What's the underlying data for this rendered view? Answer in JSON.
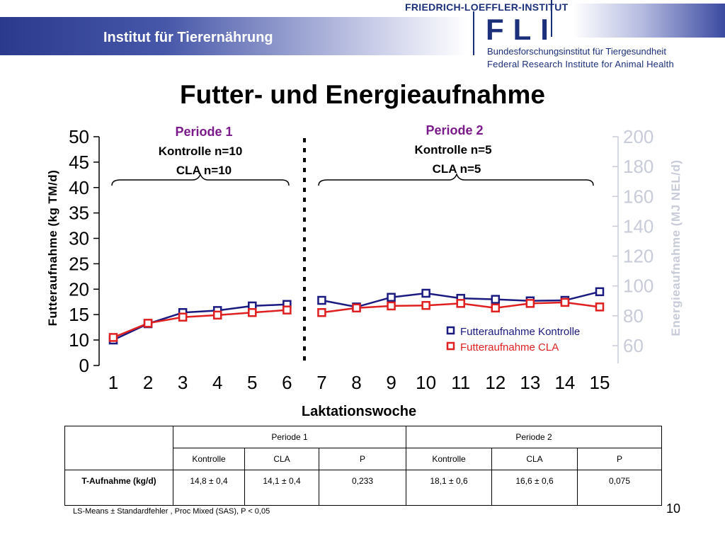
{
  "header": {
    "institute": "Institut für Tierernährung",
    "fli_name": "FRIEDRICH-LOEFFLER-INSTITUT",
    "fli_logo": "FLI",
    "fli_de": "Bundesforschungsinstitut für Tiergesundheit",
    "fli_en": "Federal Research Institute for Animal Health",
    "brand_color": "#1b2f7a"
  },
  "title": "Futter- und Energieaufnahme",
  "chart_data": {
    "type": "line",
    "xlabel": "Laktationswoche",
    "ylabel": "Futteraufnahme (kg TM/d)",
    "y2label": "Energieaufnahme (MJ NEL/d)",
    "x": [
      1,
      2,
      3,
      4,
      5,
      6,
      7,
      8,
      9,
      10,
      11,
      12,
      13,
      14,
      15
    ],
    "y_ticks": [
      0,
      10,
      15,
      20,
      25,
      30,
      35,
      40,
      45,
      50
    ],
    "y2_ticks": [
      60,
      80,
      100,
      120,
      140,
      160,
      180,
      200
    ],
    "ylim": [
      0,
      50
    ],
    "y2lim": [
      50,
      200
    ],
    "series": [
      {
        "name": "Futteraufnahme Kontrolle",
        "color": "#1a1a80",
        "values": [
          10.0,
          13.2,
          15.4,
          15.8,
          16.7,
          17.0,
          17.8,
          16.5,
          18.4,
          19.2,
          18.2,
          18.0,
          17.7,
          17.8,
          19.5
        ]
      },
      {
        "name": "Futteraufnahme CLA",
        "color": "#e02020",
        "values": [
          10.5,
          13.3,
          14.5,
          14.9,
          15.4,
          15.9,
          15.4,
          16.3,
          16.7,
          16.8,
          17.2,
          16.3,
          17.2,
          17.4,
          16.5
        ]
      }
    ],
    "periods": [
      {
        "label": "Periode 1",
        "line1": "Kontrolle n=10",
        "line2": "CLA n=10",
        "color": "#7b1a8a"
      },
      {
        "label": "Periode 2",
        "line1": "Kontrolle n=5",
        "line2": "CLA n=5",
        "color": "#7b1a8a"
      }
    ],
    "legend_position": "bottom-right"
  },
  "table": {
    "headers_period": [
      "Periode 1",
      "Periode 2"
    ],
    "subheaders": [
      "Kontrolle",
      "CLA",
      "P",
      "Kontrolle",
      "CLA",
      "P"
    ],
    "row_label": "T-Aufnahme (kg/d)",
    "row_values": [
      "14,8 ± 0,4",
      "14,1 ± 0,4",
      "0,233",
      "18,1 ± 0,6",
      "16,6 ± 0,6",
      "0,075"
    ]
  },
  "footnote": "LS-Means ± Standardfehler , Proc Mixed  (SAS),  P < 0,05",
  "page_number": "10"
}
